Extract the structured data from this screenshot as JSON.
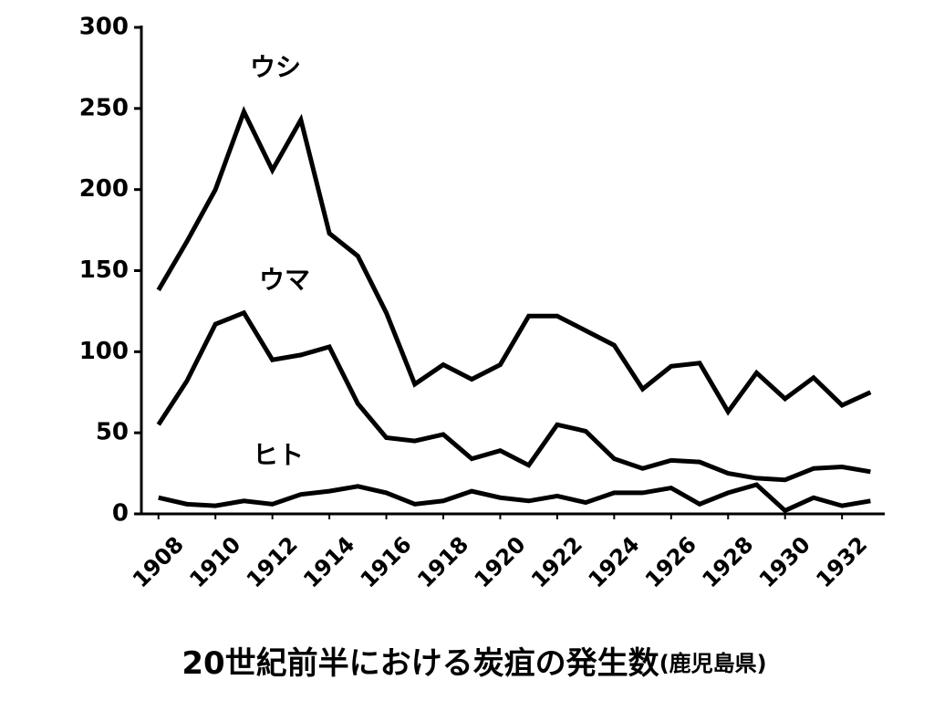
{
  "chart_data": {
    "type": "line",
    "title": "20世紀前半における炭疽の発生数",
    "subtitle": "(鹿児島県)",
    "x": [
      1908,
      1909,
      1910,
      1911,
      1912,
      1913,
      1914,
      1915,
      1916,
      1917,
      1918,
      1919,
      1920,
      1921,
      1922,
      1923,
      1924,
      1925,
      1926,
      1927,
      1928,
      1929,
      1930,
      1931,
      1932,
      1933
    ],
    "series": [
      {
        "name": "ウシ",
        "color": "#000000",
        "values": [
          138,
          168,
          200,
          248,
          212,
          243,
          173,
          159,
          124,
          80,
          92,
          83,
          92,
          122,
          122,
          113,
          104,
          77,
          91,
          93,
          63,
          87,
          71,
          84,
          67,
          75
        ]
      },
      {
        "name": "ウマ",
        "color": "#000000",
        "values": [
          55,
          82,
          117,
          124,
          95,
          98,
          103,
          68,
          47,
          45,
          49,
          34,
          39,
          30,
          55,
          51,
          34,
          28,
          33,
          32,
          25,
          22,
          21,
          28,
          29,
          26
        ]
      },
      {
        "name": "ヒト",
        "color": "#000000",
        "values": [
          10,
          6,
          5,
          8,
          6,
          12,
          14,
          17,
          13,
          6,
          8,
          14,
          10,
          8,
          11,
          7,
          13,
          13,
          16,
          6,
          13,
          18,
          2,
          10,
          5,
          8
        ]
      }
    ],
    "xlim": [
      1907.4,
      1933.5
    ],
    "xticks": [
      1908,
      1910,
      1912,
      1914,
      1916,
      1918,
      1920,
      1922,
      1924,
      1926,
      1928,
      1930,
      1932
    ],
    "ylim": [
      0,
      300
    ],
    "yticks": [
      0,
      50,
      100,
      150,
      200,
      250,
      300
    ],
    "grid": false
  }
}
